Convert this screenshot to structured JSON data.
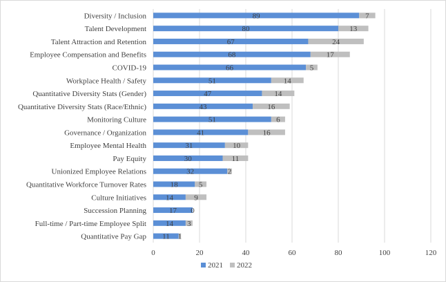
{
  "chart_data": {
    "type": "bar",
    "orientation": "horizontal",
    "stacked": true,
    "categories": [
      "Diversity / Inclusion",
      "Talent Development",
      "Talent Attraction and Retention",
      "Employee Compensation and Benefits",
      "COVID-19",
      "Workplace Health / Safety",
      "Quantitative Diversity Stats (Gender)",
      "Quantitative Diversity Stats (Race/Ethnic)",
      "Monitoring Culture",
      "Governance / Organization",
      "Employee Mental Health",
      "Pay Equity",
      "Unionized Employee Relations",
      "Quantitative Workforce Turnover Rates",
      "Culture Initiatives",
      "Succession Planning",
      "Full-time / Part-time Employee Split",
      "Quantitative Pay Gap"
    ],
    "series": [
      {
        "name": "2021",
        "color": "#5b8fd6",
        "values": [
          89,
          80,
          67,
          68,
          66,
          51,
          47,
          43,
          51,
          41,
          31,
          30,
          32,
          18,
          14,
          17,
          14,
          11
        ]
      },
      {
        "name": "2022",
        "color": "#bfbfbf",
        "values": [
          7,
          13,
          24,
          17,
          5,
          14,
          14,
          16,
          6,
          16,
          10,
          11,
          2,
          5,
          9,
          0,
          3,
          1
        ]
      }
    ],
    "xlim": [
      0,
      120
    ],
    "xticks": [
      0,
      20,
      40,
      60,
      80,
      100,
      120
    ],
    "grid": "vertical",
    "legend": "bottom"
  }
}
